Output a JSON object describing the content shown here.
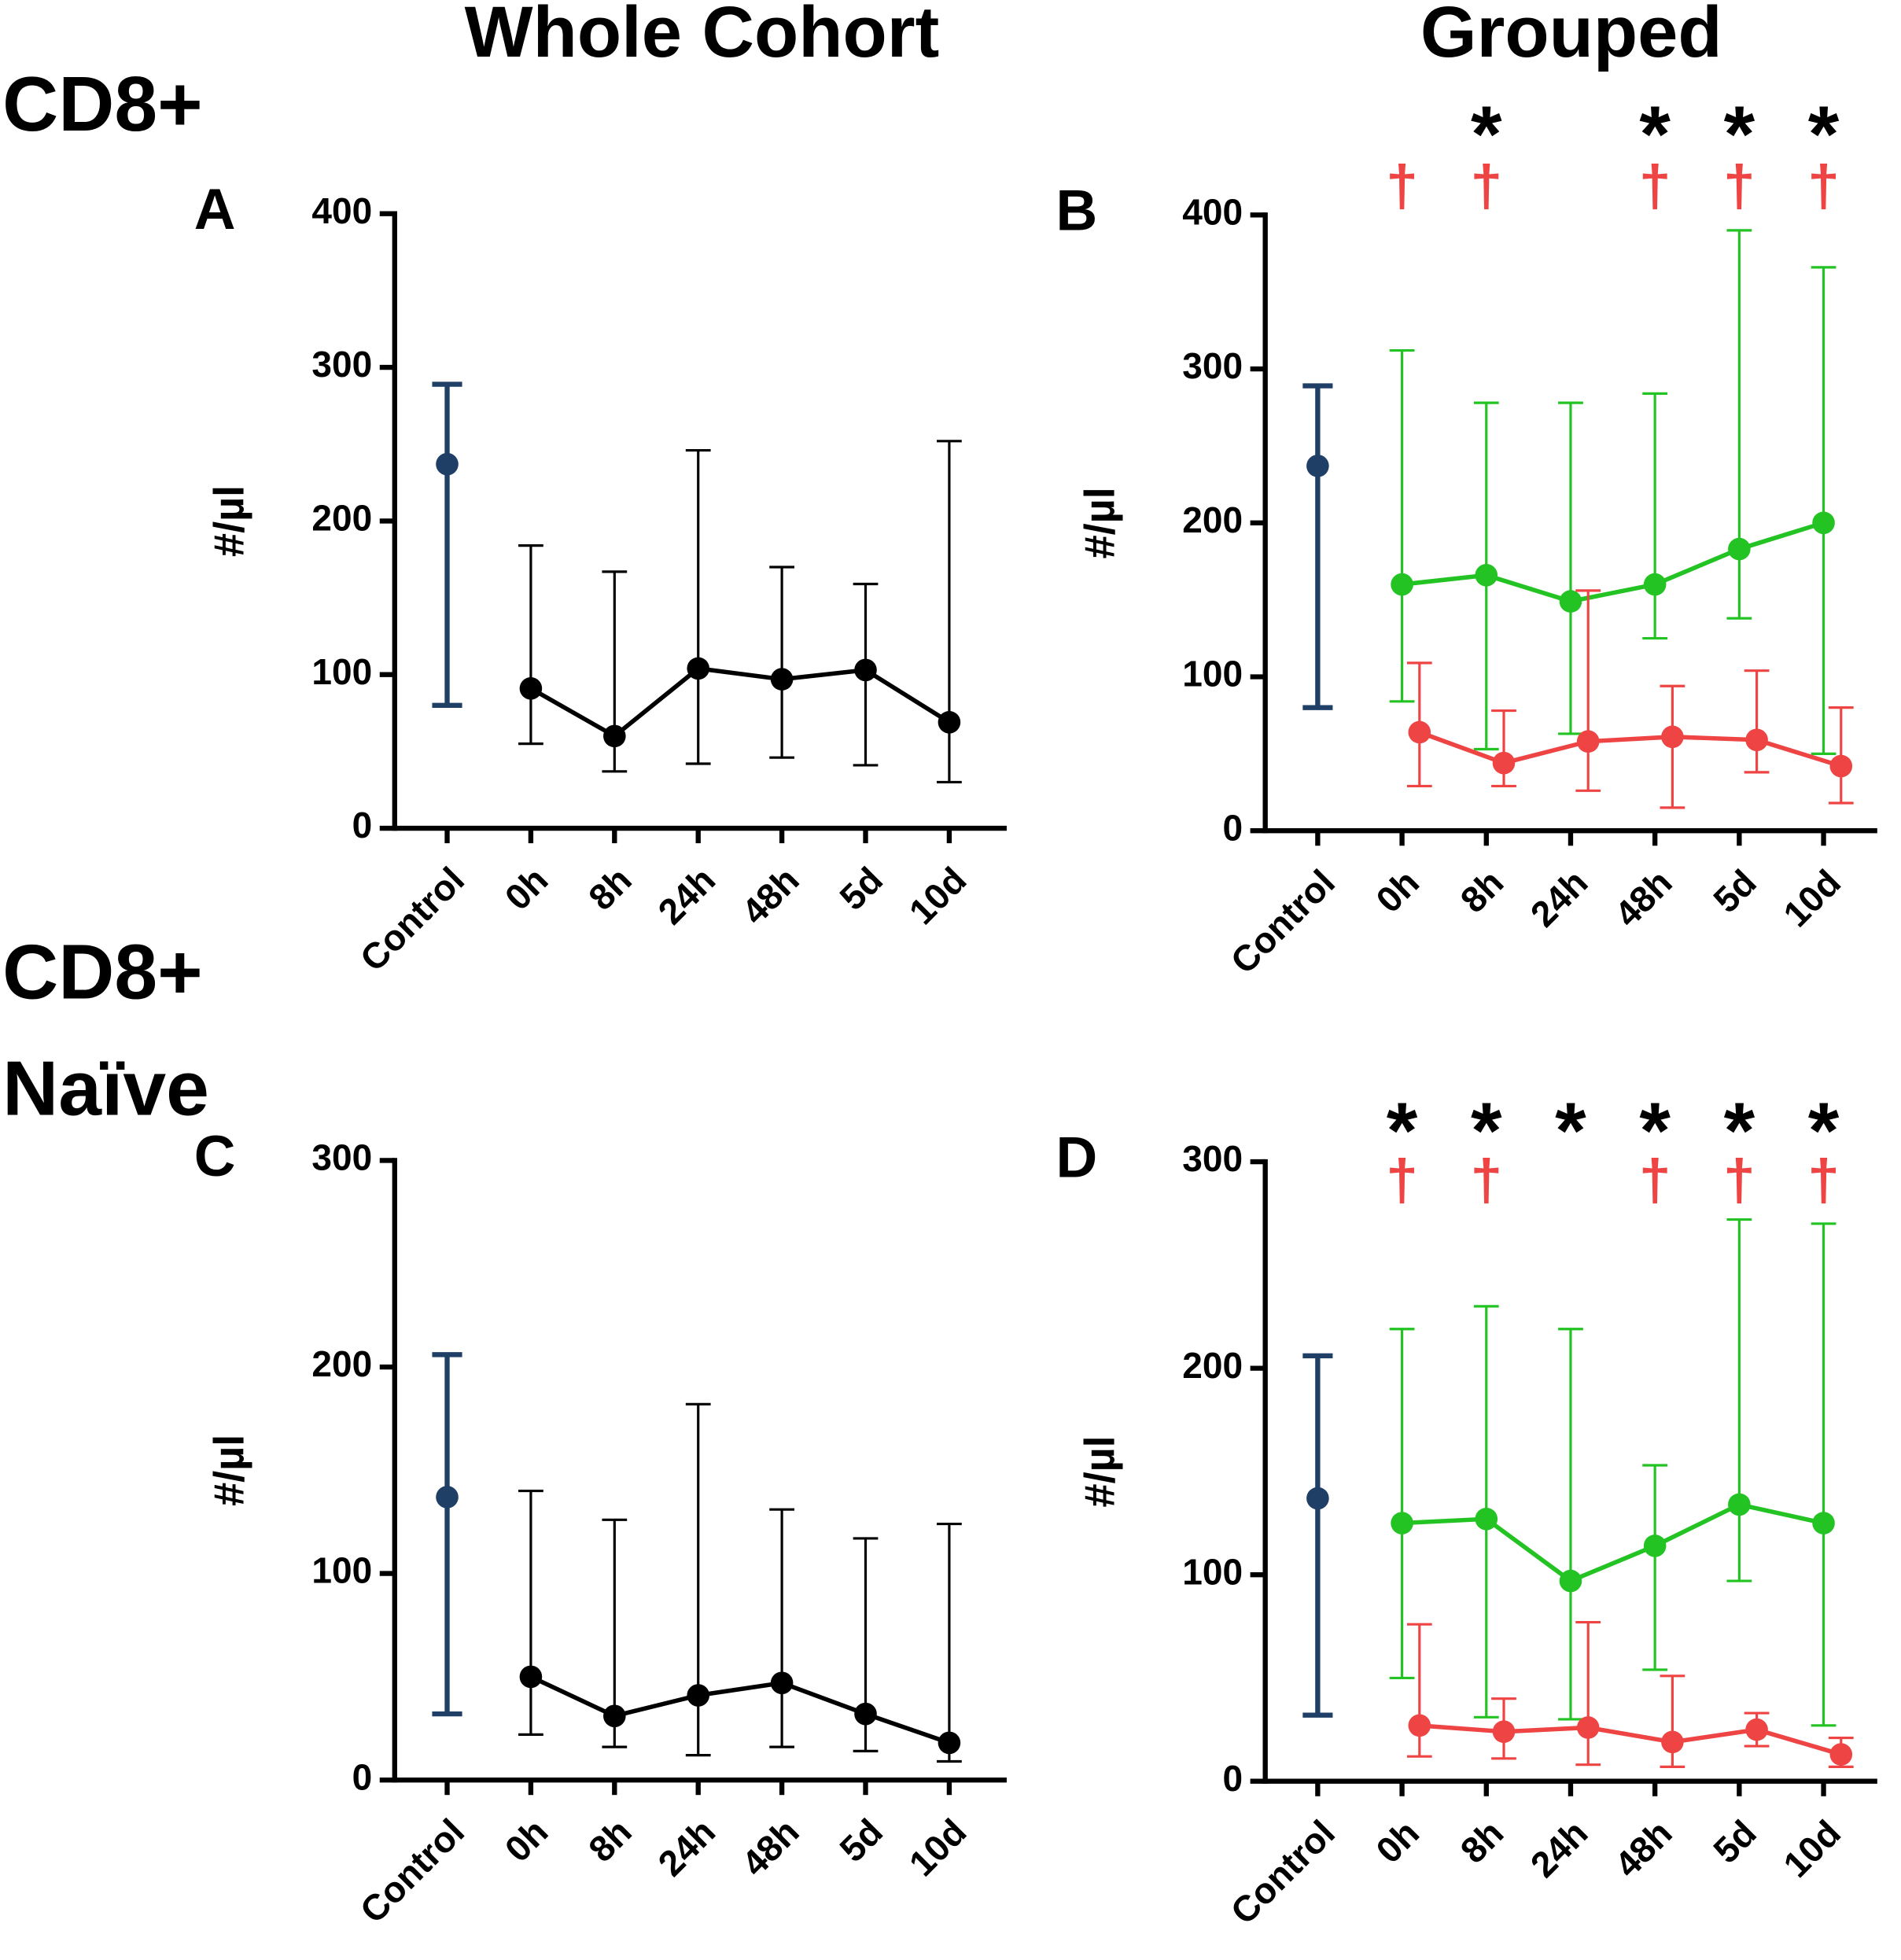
{
  "column_titles": [
    "Whole Cohort",
    "Grouped"
  ],
  "row_titles": [
    [
      "CD8+"
    ],
    [
      "CD8+",
      "Naïve"
    ]
  ],
  "chart_data": [
    {
      "type": "line",
      "label": "A",
      "ylabel": "#/µl",
      "categories": [
        "Control",
        "0h",
        "8h",
        "24h",
        "48h",
        "5d",
        "10d"
      ],
      "ylim": [
        0,
        400
      ],
      "yticks": [
        0,
        100,
        200,
        300,
        400
      ],
      "series": [
        {
          "color": "#1f3f66",
          "values": [
            237,
            null,
            null,
            null,
            null,
            null,
            null
          ],
          "lower": [
            80,
            null,
            null,
            null,
            null,
            null,
            null
          ],
          "upper": [
            289,
            null,
            null,
            null,
            null,
            null,
            null
          ]
        },
        {
          "color": "#000000",
          "values": [
            null,
            91,
            60,
            104,
            97,
            103,
            69
          ],
          "lower": [
            null,
            55,
            37,
            42,
            46,
            41,
            30
          ],
          "upper": [
            null,
            184,
            167,
            246,
            170,
            159,
            252
          ]
        }
      ]
    },
    {
      "type": "line",
      "label": "B",
      "ylabel": "#/µl",
      "categories": [
        "Control",
        "0h",
        "8h",
        "24h",
        "48h",
        "5d",
        "10d"
      ],
      "ylim": [
        0,
        400
      ],
      "yticks": [
        0,
        100,
        200,
        300,
        400
      ],
      "series": [
        {
          "color": "#1f3f66",
          "values": [
            237,
            null,
            null,
            null,
            null,
            null,
            null
          ],
          "lower": [
            80,
            null,
            null,
            null,
            null,
            null,
            null
          ],
          "upper": [
            289,
            null,
            null,
            null,
            null,
            null,
            null
          ]
        },
        {
          "color": "#22c322",
          "values": [
            null,
            160,
            166,
            149,
            160,
            183,
            200
          ],
          "lower": [
            null,
            84,
            53,
            63,
            125,
            138,
            50
          ],
          "upper": [
            null,
            312,
            278,
            278,
            284,
            390,
            366
          ]
        },
        {
          "color": "#ee4444",
          "values": [
            null,
            64,
            44,
            58,
            61,
            59,
            42
          ],
          "lower": [
            null,
            29,
            29,
            26,
            15,
            38,
            18
          ],
          "upper": [
            null,
            109,
            78,
            156,
            94,
            104,
            80
          ]
        }
      ],
      "stars": [
        null,
        null,
        "*",
        null,
        "*",
        "*",
        "*"
      ],
      "daggers": [
        null,
        "†",
        "†",
        null,
        "†",
        "†",
        "†"
      ]
    },
    {
      "type": "line",
      "label": "C",
      "ylabel": "#/µl",
      "categories": [
        "Control",
        "0h",
        "8h",
        "24h",
        "48h",
        "5d",
        "10d"
      ],
      "ylim": [
        0,
        300
      ],
      "yticks": [
        0,
        100,
        200,
        300
      ],
      "series": [
        {
          "color": "#1f3f66",
          "values": [
            137,
            null,
            null,
            null,
            null,
            null,
            null
          ],
          "lower": [
            32,
            null,
            null,
            null,
            null,
            null,
            null
          ],
          "upper": [
            206,
            null,
            null,
            null,
            null,
            null,
            null
          ]
        },
        {
          "color": "#000000",
          "values": [
            null,
            50,
            31,
            41,
            47,
            32,
            18
          ],
          "lower": [
            null,
            22,
            16,
            12,
            16,
            14,
            9
          ],
          "upper": [
            null,
            140,
            126,
            182,
            131,
            117,
            124
          ]
        }
      ]
    },
    {
      "type": "line",
      "label": "D",
      "ylabel": "#/µl",
      "categories": [
        "Control",
        "0h",
        "8h",
        "24h",
        "48h",
        "5d",
        "10d"
      ],
      "ylim": [
        0,
        300
      ],
      "yticks": [
        0,
        100,
        200,
        300
      ],
      "series": [
        {
          "color": "#1f3f66",
          "values": [
            137,
            null,
            null,
            null,
            null,
            null,
            null
          ],
          "lower": [
            32,
            null,
            null,
            null,
            null,
            null,
            null
          ],
          "upper": [
            206,
            null,
            null,
            null,
            null,
            null,
            null
          ]
        },
        {
          "color": "#22c322",
          "values": [
            null,
            125,
            127,
            97,
            114,
            134,
            125
          ],
          "lower": [
            null,
            50,
            31,
            30,
            54,
            97,
            27
          ],
          "upper": [
            null,
            219,
            230,
            219,
            153,
            272,
            270
          ]
        },
        {
          "color": "#ee4444",
          "values": [
            null,
            27,
            24,
            26,
            19,
            25,
            13
          ],
          "lower": [
            null,
            12,
            11,
            8,
            7,
            17,
            7
          ],
          "upper": [
            null,
            76,
            40,
            77,
            51,
            33,
            21
          ]
        }
      ],
      "stars": [
        null,
        "*",
        "*",
        "*",
        "*",
        "*",
        "*"
      ],
      "daggers": [
        null,
        "†",
        "†",
        null,
        "†",
        "†",
        "†"
      ]
    }
  ]
}
